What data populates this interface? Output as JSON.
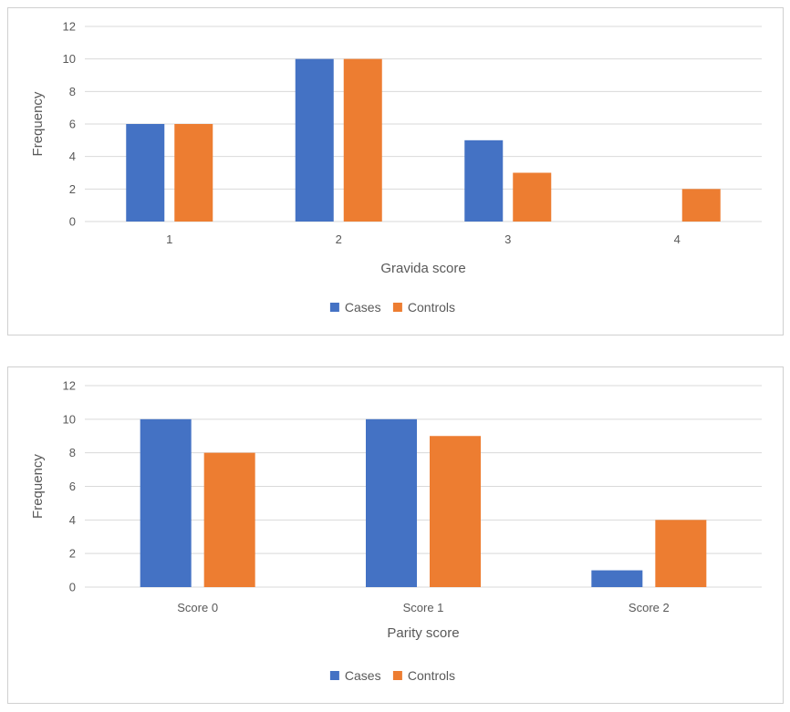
{
  "chart_data": [
    {
      "type": "bar",
      "categories": [
        "1",
        "2",
        "3",
        "4"
      ],
      "series": [
        {
          "name": "Cases",
          "values": [
            6,
            10,
            5,
            0
          ],
          "color": "#4472C4"
        },
        {
          "name": "Controls",
          "values": [
            6,
            10,
            3,
            2
          ],
          "color": "#ED7D31"
        }
      ],
      "xlabel": "Gravida score",
      "ylabel": "Frequency",
      "ylim": [
        0,
        12
      ],
      "yticks": [
        0,
        2,
        4,
        6,
        8,
        10,
        12
      ],
      "grid": true,
      "legend": "bottom"
    },
    {
      "type": "bar",
      "categories": [
        "Score 0",
        "Score 1",
        "Score 2"
      ],
      "series": [
        {
          "name": "Cases",
          "values": [
            10,
            10,
            1
          ],
          "color": "#4472C4"
        },
        {
          "name": "Controls",
          "values": [
            8,
            9,
            4
          ],
          "color": "#ED7D31"
        }
      ],
      "xlabel": "Parity score",
      "ylabel": "Frequency",
      "ylim": [
        0,
        12
      ],
      "yticks": [
        0,
        2,
        4,
        6,
        8,
        10,
        12
      ],
      "grid": true,
      "legend": "bottom"
    }
  ]
}
